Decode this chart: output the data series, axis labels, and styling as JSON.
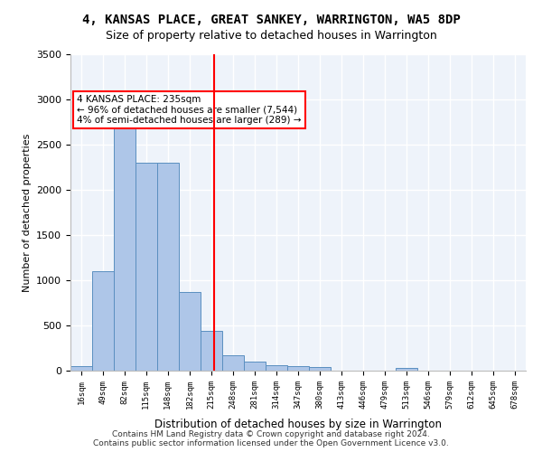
{
  "title": "4, KANSAS PLACE, GREAT SANKEY, WARRINGTON, WA5 8DP",
  "subtitle": "Size of property relative to detached houses in Warrington",
  "xlabel": "Distribution of detached houses by size in Warrington",
  "ylabel": "Number of detached properties",
  "bin_labels": [
    "16sqm",
    "49sqm",
    "82sqm",
    "115sqm",
    "148sqm",
    "182sqm",
    "215sqm",
    "248sqm",
    "281sqm",
    "314sqm",
    "347sqm",
    "380sqm",
    "413sqm",
    "446sqm",
    "479sqm",
    "513sqm",
    "546sqm",
    "579sqm",
    "612sqm",
    "645sqm",
    "678sqm"
  ],
  "bin_edges": [
    16,
    49,
    82,
    115,
    148,
    182,
    215,
    248,
    281,
    314,
    347,
    380,
    413,
    446,
    479,
    513,
    546,
    579,
    612,
    645,
    678
  ],
  "bar_heights": [
    50,
    1100,
    2750,
    2300,
    2300,
    875,
    440,
    175,
    100,
    60,
    50,
    40,
    0,
    0,
    0,
    35,
    0,
    0,
    0,
    0,
    0
  ],
  "bar_color": "#aec6e8",
  "bar_edge_color": "#5a8fc0",
  "vline_x": 235,
  "vline_color": "red",
  "annotation_text": "4 KANSAS PLACE: 235sqm\n← 96% of detached houses are smaller (7,544)\n4% of semi-detached houses are larger (289) →",
  "annotation_box_color": "white",
  "annotation_box_edge": "red",
  "bg_color": "#eef3fa",
  "grid_color": "white",
  "footer_text": "Contains HM Land Registry data © Crown copyright and database right 2024.\nContains public sector information licensed under the Open Government Licence v3.0.",
  "ylim": [
    0,
    3500
  ],
  "yticks": [
    0,
    500,
    1000,
    1500,
    2000,
    2500,
    3000,
    3500
  ]
}
